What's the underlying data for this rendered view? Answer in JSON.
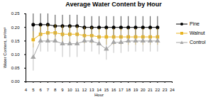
{
  "chart_data": {
    "type": "line",
    "title": "Average Water Content by Hour",
    "x_label": "Hour",
    "y_label": "Water Content, m³/m³",
    "x": [
      5,
      6,
      7,
      8,
      9,
      10,
      11,
      12,
      13,
      14,
      15,
      16,
      17,
      18,
      19,
      20,
      21,
      22
    ],
    "series": [
      {
        "name": "Pine",
        "color": "#000000",
        "marker": "circle",
        "values": [
          0.21,
          0.21,
          0.21,
          0.205,
          0.205,
          0.205,
          0.205,
          0.2,
          0.2,
          0.2,
          0.2,
          0.2,
          0.2,
          0.2,
          0.2,
          0.2,
          0.2,
          0.2
        ],
        "errors": [
          0.05,
          0.04,
          0.04,
          0.04,
          0.04,
          0.04,
          0.04,
          0.04,
          0.04,
          0.04,
          0.04,
          0.04,
          0.04,
          0.04,
          0.04,
          0.04,
          0.04,
          0.04
        ]
      },
      {
        "name": "Walnut",
        "color": "#e8b422",
        "marker": "square",
        "values": [
          0.155,
          0.175,
          0.18,
          0.18,
          0.175,
          0.175,
          0.175,
          0.17,
          0.17,
          0.165,
          0.165,
          0.165,
          0.165,
          0.165,
          0.165,
          0.165,
          0.165,
          0.165
        ],
        "errors": [
          0.03,
          0.03,
          0.03,
          0.03,
          0.03,
          0.03,
          0.03,
          0.03,
          0.03,
          0.03,
          0.03,
          0.03,
          0.03,
          0.03,
          0.03,
          0.03,
          0.03,
          0.03
        ]
      },
      {
        "name": "Control",
        "color": "#a6a6a6",
        "marker": "triangle",
        "values": [
          0.09,
          0.15,
          0.15,
          0.15,
          0.14,
          0.14,
          0.14,
          0.15,
          0.15,
          0.14,
          0.12,
          0.145,
          0.145,
          0.15,
          0.15,
          0.15,
          0.15,
          0.15
        ],
        "errors": [
          0.05,
          0.04,
          0.04,
          0.04,
          0.05,
          0.05,
          0.05,
          0.04,
          0.04,
          0.04,
          0.04,
          0.04,
          0.04,
          0.04,
          0.04,
          0.04,
          0.04,
          0.04
        ]
      }
    ],
    "xlim": [
      4,
      24
    ],
    "xticks": [
      4,
      5,
      6,
      7,
      8,
      9,
      10,
      11,
      12,
      13,
      14,
      15,
      16,
      17,
      18,
      19,
      20,
      21,
      22,
      23,
      24
    ],
    "ylim": [
      0,
      0.25
    ],
    "yticks": [
      {
        "value": 0,
        "label": "0.00"
      },
      {
        "value": 0.05,
        "label": "0.05"
      },
      {
        "value": 0.1,
        "label": "0.10"
      },
      {
        "value": 0.15,
        "label": "0.15"
      },
      {
        "value": 0.2,
        "label": "0.20"
      },
      {
        "value": 0.25,
        "label": "0.25"
      }
    ],
    "legend": "right"
  }
}
